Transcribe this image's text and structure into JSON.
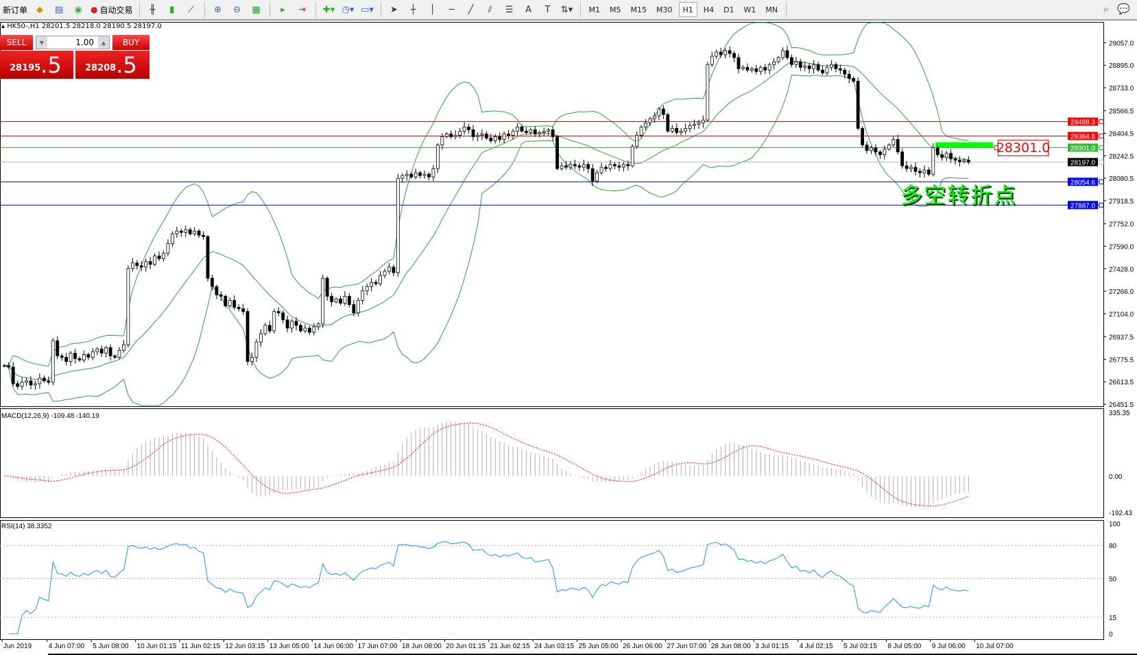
{
  "toolbar": {
    "new_order": "新订单",
    "auto_trade": "自动交易",
    "timeframes": [
      "M1",
      "M5",
      "M15",
      "M30",
      "H1",
      "H4",
      "D1",
      "W1",
      "MN"
    ],
    "active_timeframe": "H1"
  },
  "chart": {
    "title": "HK50-,H1  28201.5 28218.0 28190.5 28197.0",
    "symbol": "HK50-",
    "timeframe": "H1"
  },
  "trade_panel": {
    "sell_label": "SELL",
    "buy_label": "BUY",
    "lot": "1.00",
    "sell_big": "28195",
    "sell_small": ".5",
    "buy_big": "28208",
    "buy_small": ".5"
  },
  "price_axis": [
    "29057.0",
    "28895.0",
    "28733.0",
    "28566.5",
    "28404.5",
    "28242.5",
    "28080.5",
    "27918.5",
    "27752.0",
    "27590.0",
    "27428.0",
    "27266.0",
    "27104.0",
    "26937.5",
    "26775.5",
    "26613.5",
    "26451.5"
  ],
  "hlines": [
    {
      "price": 28488.3,
      "label": "28488.3",
      "color": "#ff0000"
    },
    {
      "price": 28384.8,
      "label": "28384.8",
      "color": "#ff0000"
    },
    {
      "price": 28301.0,
      "label": "28301.0",
      "color": "#33bb33"
    },
    {
      "price": 28197.0,
      "label": "28197.0",
      "color": "#000000"
    },
    {
      "price": 28054.6,
      "label": "28054.6",
      "color": "#0000ff"
    },
    {
      "price": 27887.0,
      "label": "27887.0",
      "color": "#0000ff"
    }
  ],
  "annotation": {
    "text": "多空转折点",
    "price_label": "28301.0",
    "color": "#00ff00"
  },
  "macd": {
    "label": "MACD(12,26,9) -109.48 -140.19",
    "axis": [
      "335.35",
      "0.00",
      "-192.43"
    ],
    "max": 335.35,
    "min": -192.43
  },
  "rsi": {
    "label": "RSI(14) 38.3352",
    "axis": [
      "100",
      "80",
      "50",
      "15",
      "0"
    ],
    "levels": [
      80,
      50,
      15
    ]
  },
  "date_axis": [
    "Jun 2019",
    "4 Jun 07:00",
    "5 Jun 08:00",
    "10 Jun 01:15",
    "11 Jun 02:15",
    "12 Jun 03:15",
    "13 Jun 05:00",
    "14 Jun 06:00",
    "17 Jun 07:00",
    "18 Jun 08:00",
    "20 Jun 01:15",
    "21 Jun 02:15",
    "24 Jun 03:15",
    "25 Jun 05:00",
    "26 Jun 06:00",
    "27 Jun 07:00",
    "28 Jun 08:00",
    "3 Jul 01:15",
    "4 Jul 02:15",
    "5 Jul 03:15",
    "8 Jul 05:00",
    "9 Jul 06:00",
    "10 Jul 07:00"
  ],
  "chart_data": {
    "type": "candlestick",
    "price_range": [
      26451.5,
      29057.0
    ],
    "close": [
      26730,
      26720,
      26600,
      26580,
      26610,
      26620,
      26590,
      26600,
      26640,
      26620,
      26610,
      26910,
      26800,
      26790,
      26760,
      26820,
      26780,
      26770,
      26810,
      26790,
      26830,
      26850,
      26820,
      26860,
      26800,
      26790,
      26840,
      26880,
      27430,
      27470,
      27450,
      27440,
      27480,
      27460,
      27520,
      27500,
      27540,
      27610,
      27680,
      27700,
      27690,
      27710,
      27680,
      27700,
      27670,
      27660,
      27360,
      27300,
      27240,
      27230,
      27160,
      27200,
      27150,
      27140,
      27120,
      26760,
      26790,
      26900,
      26960,
      27020,
      26980,
      27120,
      27110,
      27060,
      27000,
      27050,
      27020,
      26980,
      27000,
      26970,
      27010,
      27030,
      27360,
      27230,
      27190,
      27210,
      27180,
      27230,
      27170,
      27110,
      27200,
      27270,
      27300,
      27330,
      27320,
      27380,
      27410,
      27440,
      27400,
      28080,
      28100,
      28110,
      28090,
      28120,
      28100,
      28110,
      28090,
      28150,
      28320,
      28380,
      28400,
      28380,
      28390,
      28420,
      28450,
      28430,
      28380,
      28390,
      28400,
      28370,
      28350,
      28380,
      28360,
      28400,
      28390,
      28420,
      28450,
      28420,
      28410,
      28430,
      28400,
      28410,
      28420,
      28430,
      28380,
      28150,
      28170,
      28160,
      28180,
      28170,
      28160,
      28180,
      28150,
      28060,
      28120,
      28160,
      28150,
      28180,
      28170,
      28160,
      28180,
      28170,
      28310,
      28390,
      28450,
      28480,
      28510,
      28530,
      28580,
      28540,
      28420,
      28440,
      28410,
      28420,
      28440,
      28460,
      28470,
      28480,
      28500,
      28900,
      28960,
      28990,
      28970,
      29000,
      28980,
      28950,
      28870,
      28880,
      28860,
      28870,
      28850,
      28880,
      28860,
      28900,
      28920,
      28950,
      29000,
      28950,
      28900,
      28920,
      28880,
      28890,
      28870,
      28900,
      28860,
      28840,
      28880,
      28900,
      28870,
      28860,
      28830,
      28800,
      28780,
      28440,
      28320,
      28280,
      28300,
      28270,
      28250,
      28290,
      28320,
      28360,
      28270,
      28170,
      28150,
      28160,
      28130,
      28120,
      28140,
      28110,
      28300,
      28250,
      28230,
      28260,
      28220,
      28210,
      28200,
      28210,
      28197
    ]
  },
  "colors": {
    "bands": "#2ea043",
    "macd_hist": "#b0b0b0",
    "macd_signal": "#ff0000",
    "rsi": "#1e90ff"
  }
}
